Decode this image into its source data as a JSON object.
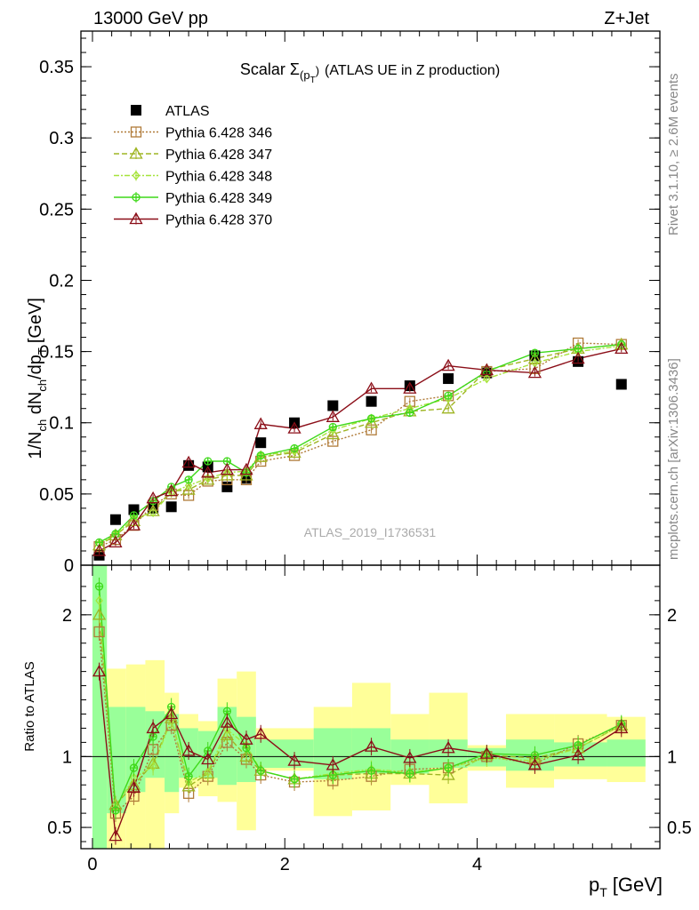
{
  "header": {
    "left": "13000 GeV pp",
    "right": "Z+Jet"
  },
  "side_labels": {
    "rivet": "Rivet 3.1.10, ≥ 2.6M events",
    "mcplots": "mcplots.cern.ch [arXiv:1306.3436]"
  },
  "watermark": "ATLAS_2019_I1736531",
  "colors": {
    "atlas": "#000000",
    "p346": "#b07b39",
    "p347": "#9fb523",
    "p348": "#a6e33a",
    "p349": "#3fd91a",
    "p370": "#8b0e18",
    "band_yellow": "#ffff99",
    "band_green": "#99ff99"
  },
  "chart_data": [
    {
      "type": "scatter",
      "title_main": "Scalar Σ",
      "title_sub": "(p",
      "title_subsub": "T",
      "title_close": ")",
      "title_rest": "(ATLAS UE in Z production)",
      "ylabel_main": "1/N",
      "ylabel_ch1": "ch",
      "ylabel_mid": " dN",
      "ylabel_ch2": "ch",
      "ylabel_dp": "/dp",
      "ylabel_T": "T",
      "ylabel_unit": "[GeV]",
      "xlim": [
        -0.12,
        5.9
      ],
      "ylim": [
        0,
        0.375
      ],
      "y_ticks": [
        {
          "v": 0,
          "label": "0"
        },
        {
          "v": 0.05,
          "label": "0.05"
        },
        {
          "v": 0.1,
          "label": "0.1"
        },
        {
          "v": 0.15,
          "label": "0.15"
        },
        {
          "v": 0.2,
          "label": "0.2"
        },
        {
          "v": 0.25,
          "label": "0.25"
        },
        {
          "v": 0.3,
          "label": "0.3"
        },
        {
          "v": 0.35,
          "label": "0.35"
        }
      ],
      "legend": {
        "placement": "top-left",
        "entries": [
          "ATLAS",
          "Pythia 6.428 346",
          "Pythia 6.428 347",
          "Pythia 6.428 348",
          "Pythia 6.428 349",
          "Pythia 6.428 370"
        ]
      },
      "x": [
        0.07,
        0.24,
        0.43,
        0.63,
        0.82,
        1.0,
        1.2,
        1.4,
        1.6,
        1.75,
        2.1,
        2.5,
        2.9,
        3.3,
        3.7,
        4.1,
        4.6,
        5.05,
        5.5
      ],
      "series": [
        {
          "name": "ATLAS",
          "key": "atlas",
          "marker": "square",
          "values": [
            0.007,
            0.032,
            0.039,
            0.04,
            0.041,
            0.07,
            0.069,
            0.055,
            0.061,
            0.086,
            0.1,
            0.112,
            0.115,
            0.126,
            0.131,
            0.135,
            0.147,
            0.143,
            0.127
          ]
        },
        {
          "name": "Pythia 6.428 346",
          "key": "p346",
          "marker": "square-open",
          "values": [
            0.013,
            0.018,
            0.028,
            0.042,
            0.05,
            0.049,
            0.059,
            0.06,
            0.06,
            0.073,
            0.077,
            0.087,
            0.095,
            0.115,
            0.119,
            0.136,
            0.138,
            0.156,
            0.155
          ]
        },
        {
          "name": "Pythia 6.428 347",
          "key": "p347",
          "marker": "triangle-open",
          "values": [
            0.014,
            0.021,
            0.031,
            0.038,
            0.052,
            0.053,
            0.06,
            0.063,
            0.063,
            0.076,
            0.079,
            0.092,
            0.1,
            0.108,
            0.11,
            0.137,
            0.145,
            0.152,
            0.155
          ]
        },
        {
          "name": "Pythia 6.428 348",
          "key": "p348",
          "marker": "diamond-open",
          "values": [
            0.015,
            0.021,
            0.033,
            0.037,
            0.051,
            0.056,
            0.061,
            0.065,
            0.066,
            0.077,
            0.08,
            0.095,
            0.103,
            0.11,
            0.117,
            0.131,
            0.142,
            0.15,
            0.154
          ]
        },
        {
          "name": "Pythia 6.428 349",
          "key": "p349",
          "marker": "circle-cross",
          "values": [
            0.016,
            0.022,
            0.035,
            0.045,
            0.055,
            0.06,
            0.073,
            0.073,
            0.065,
            0.077,
            0.082,
            0.097,
            0.103,
            0.107,
            0.119,
            0.136,
            0.149,
            0.152,
            0.155
          ]
        },
        {
          "name": "Pythia 6.428 370",
          "key": "p370",
          "marker": "triangle-open",
          "values": [
            0.01,
            0.016,
            0.028,
            0.047,
            0.052,
            0.072,
            0.065,
            0.067,
            0.067,
            0.099,
            0.096,
            0.104,
            0.124,
            0.124,
            0.14,
            0.137,
            0.135,
            0.145,
            0.152
          ]
        }
      ]
    },
    {
      "type": "scatter",
      "title": "",
      "ylabel": "Ratio to ATLAS",
      "xlabel_main": "p",
      "xlabel_sub": "T",
      "xlabel_unit": "[GeV]",
      "xlim": [
        -0.12,
        5.9
      ],
      "ylim": [
        0.35,
        2.35
      ],
      "y_ticks": [
        {
          "v": 0.5,
          "label": "0.5"
        },
        {
          "v": 1,
          "label": "1"
        },
        {
          "v": 2,
          "label": "2"
        }
      ],
      "x_ticks": [
        {
          "v": 0,
          "label": "0"
        },
        {
          "v": 2,
          "label": "2"
        },
        {
          "v": 4,
          "label": "4"
        }
      ],
      "bands": [
        {
          "x0": 0.0,
          "x1": 0.15,
          "y_lo": 0.35,
          "y_hi": 2.35,
          "g_lo": 0.35,
          "g_hi": 2.35
        },
        {
          "x0": 0.15,
          "x1": 0.35,
          "y_lo": 0.35,
          "y_hi": 1.62,
          "g_lo": 0.6,
          "g_hi": 1.35
        },
        {
          "x0": 0.35,
          "x1": 0.55,
          "y_lo": 0.35,
          "y_hi": 1.65,
          "g_lo": 0.75,
          "g_hi": 1.35
        },
        {
          "x0": 0.55,
          "x1": 0.75,
          "y_lo": 0.35,
          "y_hi": 1.68,
          "g_lo": 0.85,
          "g_hi": 1.32
        },
        {
          "x0": 0.75,
          "x1": 0.9,
          "y_lo": 0.6,
          "y_hi": 1.45,
          "g_lo": 0.75,
          "g_hi": 1.3
        },
        {
          "x0": 0.9,
          "x1": 1.1,
          "y_lo": 0.78,
          "y_hi": 1.3,
          "g_lo": 0.85,
          "g_hi": 1.2
        },
        {
          "x0": 1.1,
          "x1": 1.3,
          "y_lo": 0.72,
          "y_hi": 1.25,
          "g_lo": 0.85,
          "g_hi": 1.18
        },
        {
          "x0": 1.3,
          "x1": 1.5,
          "y_lo": 0.68,
          "y_hi": 1.55,
          "g_lo": 0.8,
          "g_hi": 1.35
        },
        {
          "x0": 1.5,
          "x1": 1.7,
          "y_lo": 0.48,
          "y_hi": 1.6,
          "g_lo": 0.82,
          "g_hi": 1.28
        },
        {
          "x0": 1.7,
          "x1": 2.3,
          "y_lo": 0.9,
          "y_hi": 1.2,
          "g_lo": 0.92,
          "g_hi": 1.12
        },
        {
          "x0": 2.3,
          "x1": 2.7,
          "y_lo": 0.58,
          "y_hi": 1.35,
          "g_lo": 0.84,
          "g_hi": 1.2
        },
        {
          "x0": 2.7,
          "x1": 3.1,
          "y_lo": 0.62,
          "y_hi": 1.52,
          "g_lo": 0.88,
          "g_hi": 1.2
        },
        {
          "x0": 3.1,
          "x1": 3.5,
          "y_lo": 0.8,
          "y_hi": 1.3,
          "g_lo": 0.88,
          "g_hi": 1.12
        },
        {
          "x0": 3.5,
          "x1": 3.9,
          "y_lo": 0.67,
          "y_hi": 1.45,
          "g_lo": 0.92,
          "g_hi": 1.12
        },
        {
          "x0": 3.9,
          "x1": 4.3,
          "y_lo": 0.9,
          "y_hi": 1.08,
          "g_lo": 0.93,
          "g_hi": 1.06
        },
        {
          "x0": 4.3,
          "x1": 4.8,
          "y_lo": 0.78,
          "y_hi": 1.3,
          "g_lo": 0.9,
          "g_hi": 1.12
        },
        {
          "x0": 4.8,
          "x1": 5.35,
          "y_lo": 0.84,
          "y_hi": 1.3,
          "g_lo": 0.93,
          "g_hi": 1.1
        },
        {
          "x0": 5.35,
          "x1": 5.75,
          "y_lo": 0.82,
          "y_hi": 1.28,
          "g_lo": 0.93,
          "g_hi": 1.12
        }
      ],
      "x": [
        0.07,
        0.24,
        0.43,
        0.63,
        0.82,
        1.0,
        1.2,
        1.4,
        1.6,
        1.75,
        2.1,
        2.5,
        2.9,
        3.3,
        3.7,
        4.1,
        4.6,
        5.05,
        5.5
      ],
      "series": [
        {
          "name": "Pythia 6.428 346",
          "key": "p346",
          "marker": "square-open",
          "values": [
            1.88,
            0.6,
            0.72,
            1.05,
            1.22,
            0.74,
            0.86,
            1.1,
            0.98,
            0.87,
            0.82,
            0.83,
            0.86,
            0.91,
            0.92,
            1.0,
            0.95,
            1.09,
            1.22
          ]
        },
        {
          "name": "Pythia 6.428 347",
          "key": "p347",
          "marker": "triangle-open",
          "values": [
            2.0,
            0.66,
            0.8,
            0.95,
            1.27,
            0.79,
            0.88,
            1.15,
            1.0,
            0.9,
            0.84,
            0.87,
            0.88,
            0.88,
            0.87,
            1.01,
            0.99,
            1.06,
            1.22
          ]
        },
        {
          "name": "Pythia 6.428 348",
          "key": "p348",
          "marker": "diamond-open",
          "values": [
            2.1,
            0.64,
            0.85,
            0.93,
            1.26,
            0.82,
            0.89,
            1.19,
            1.08,
            0.9,
            0.84,
            0.88,
            0.91,
            0.89,
            0.92,
            0.99,
            0.97,
            1.06,
            1.22
          ]
        },
        {
          "name": "Pythia 6.428 349",
          "key": "p349",
          "marker": "circle-cross",
          "values": [
            2.2,
            0.62,
            0.92,
            1.14,
            1.35,
            0.86,
            1.04,
            1.32,
            1.06,
            0.9,
            0.84,
            0.87,
            0.9,
            0.88,
            0.92,
            1.02,
            1.01,
            1.08,
            1.23
          ]
        },
        {
          "name": "Pythia 6.428 370",
          "key": "p370",
          "marker": "triangle-open",
          "values": [
            1.6,
            0.44,
            0.78,
            1.2,
            1.3,
            1.04,
            0.98,
            1.24,
            1.12,
            1.16,
            0.97,
            0.94,
            1.07,
            0.99,
            1.06,
            1.02,
            0.94,
            1.01,
            1.2
          ]
        }
      ]
    }
  ]
}
